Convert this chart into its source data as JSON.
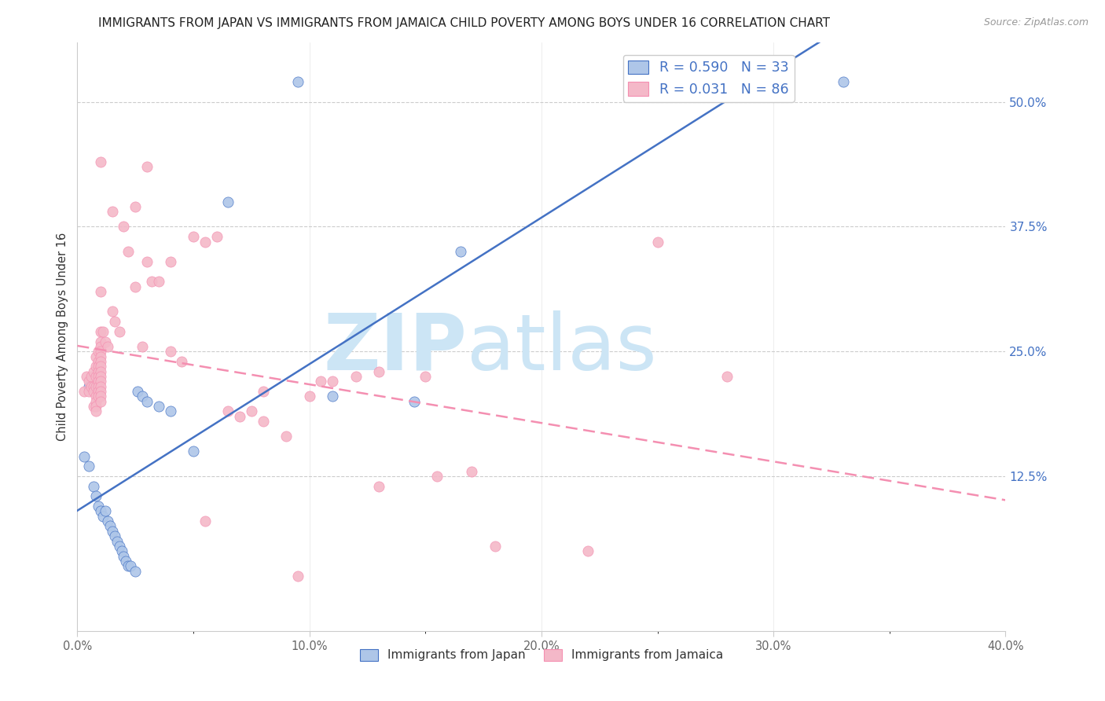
{
  "title": "IMMIGRANTS FROM JAPAN VS IMMIGRANTS FROM JAMAICA CHILD POVERTY AMONG BOYS UNDER 16 CORRELATION CHART",
  "source": "Source: ZipAtlas.com",
  "ylabel": "Child Poverty Among Boys Under 16",
  "x_tick_labels": [
    "0.0%",
    "",
    "10.0%",
    "",
    "20.0%",
    "",
    "30.0%",
    "",
    "40.0%"
  ],
  "x_tick_values": [
    0,
    5,
    10,
    15,
    20,
    25,
    30,
    35,
    40
  ],
  "x_tick_display": [
    "0.0%",
    "10.0%",
    "20.0%",
    "30.0%",
    "40.0%"
  ],
  "x_tick_display_vals": [
    0,
    10,
    20,
    30,
    40
  ],
  "y_tick_labels_right": [
    "50.0%",
    "37.5%",
    "25.0%",
    "12.5%"
  ],
  "y_tick_values_right": [
    50,
    37.5,
    25,
    12.5
  ],
  "xlim": [
    0,
    40
  ],
  "ylim": [
    -3,
    56
  ],
  "legend_entries": [
    {
      "label": "R = 0.590   N = 33",
      "color": "#aec6e8"
    },
    {
      "label": "R = 0.031   N = 86",
      "color": "#f4b8c8"
    }
  ],
  "legend_labels_bottom": [
    "Immigrants from Japan",
    "Immigrants from Jamaica"
  ],
  "japan_color": "#aec6e8",
  "jamaica_color": "#f4b8c8",
  "japan_line_color": "#4472c4",
  "jamaica_line_color": "#f48fb1",
  "watermark_zip": "ZIP",
  "watermark_atlas": "atlas",
  "watermark_color": "#cce5f5",
  "japan_points": [
    [
      0.3,
      14.5
    ],
    [
      0.5,
      13.5
    ],
    [
      0.5,
      21.5
    ],
    [
      0.7,
      11.5
    ],
    [
      0.8,
      10.5
    ],
    [
      0.9,
      9.5
    ],
    [
      1.0,
      9.0
    ],
    [
      1.1,
      8.5
    ],
    [
      1.2,
      9.0
    ],
    [
      1.3,
      8.0
    ],
    [
      1.4,
      7.5
    ],
    [
      1.5,
      7.0
    ],
    [
      1.6,
      6.5
    ],
    [
      1.7,
      6.0
    ],
    [
      1.8,
      5.5
    ],
    [
      1.9,
      5.0
    ],
    [
      2.0,
      4.5
    ],
    [
      2.1,
      4.0
    ],
    [
      2.2,
      3.5
    ],
    [
      2.3,
      3.5
    ],
    [
      2.5,
      3.0
    ],
    [
      2.6,
      21.0
    ],
    [
      2.8,
      20.5
    ],
    [
      3.0,
      20.0
    ],
    [
      3.5,
      19.5
    ],
    [
      4.0,
      19.0
    ],
    [
      5.0,
      15.0
    ],
    [
      6.5,
      40.0
    ],
    [
      9.5,
      52.0
    ],
    [
      11.0,
      20.5
    ],
    [
      14.5,
      20.0
    ],
    [
      16.5,
      35.0
    ],
    [
      33.0,
      52.0
    ]
  ],
  "jamaica_points": [
    [
      0.3,
      21.0
    ],
    [
      0.4,
      22.5
    ],
    [
      0.5,
      21.0
    ],
    [
      0.5,
      22.0
    ],
    [
      0.6,
      22.5
    ],
    [
      0.6,
      21.5
    ],
    [
      0.7,
      23.0
    ],
    [
      0.7,
      21.5
    ],
    [
      0.7,
      21.0
    ],
    [
      0.7,
      19.5
    ],
    [
      0.8,
      24.5
    ],
    [
      0.8,
      23.5
    ],
    [
      0.8,
      22.5
    ],
    [
      0.8,
      21.5
    ],
    [
      0.8,
      20.5
    ],
    [
      0.8,
      20.0
    ],
    [
      0.8,
      19.5
    ],
    [
      0.8,
      19.0
    ],
    [
      0.9,
      25.0
    ],
    [
      0.9,
      24.0
    ],
    [
      0.9,
      23.5
    ],
    [
      0.9,
      23.0
    ],
    [
      0.9,
      22.5
    ],
    [
      0.9,
      22.0
    ],
    [
      0.9,
      21.5
    ],
    [
      0.9,
      21.0
    ],
    [
      0.9,
      20.5
    ],
    [
      1.0,
      31.0
    ],
    [
      1.0,
      27.0
    ],
    [
      1.0,
      26.0
    ],
    [
      1.0,
      25.5
    ],
    [
      1.0,
      25.0
    ],
    [
      1.0,
      24.5
    ],
    [
      1.0,
      24.0
    ],
    [
      1.0,
      23.5
    ],
    [
      1.0,
      23.0
    ],
    [
      1.0,
      22.5
    ],
    [
      1.0,
      22.0
    ],
    [
      1.0,
      21.5
    ],
    [
      1.0,
      21.0
    ],
    [
      1.0,
      20.5
    ],
    [
      1.0,
      20.0
    ],
    [
      1.1,
      27.0
    ],
    [
      1.2,
      26.0
    ],
    [
      1.3,
      25.5
    ],
    [
      1.5,
      29.0
    ],
    [
      1.6,
      28.0
    ],
    [
      1.8,
      27.0
    ],
    [
      2.0,
      37.5
    ],
    [
      2.2,
      35.0
    ],
    [
      2.5,
      31.5
    ],
    [
      2.8,
      25.5
    ],
    [
      3.0,
      34.0
    ],
    [
      3.0,
      43.5
    ],
    [
      3.2,
      32.0
    ],
    [
      3.5,
      32.0
    ],
    [
      4.0,
      34.0
    ],
    [
      4.0,
      25.0
    ],
    [
      4.5,
      24.0
    ],
    [
      5.0,
      36.5
    ],
    [
      5.5,
      36.0
    ],
    [
      6.0,
      36.5
    ],
    [
      6.5,
      19.0
    ],
    [
      7.0,
      18.5
    ],
    [
      7.5,
      19.0
    ],
    [
      8.0,
      21.0
    ],
    [
      8.0,
      18.0
    ],
    [
      9.0,
      16.5
    ],
    [
      9.5,
      2.5
    ],
    [
      10.0,
      20.5
    ],
    [
      10.5,
      22.0
    ],
    [
      11.0,
      22.0
    ],
    [
      12.0,
      22.5
    ],
    [
      13.0,
      23.0
    ],
    [
      15.0,
      22.5
    ],
    [
      15.5,
      12.5
    ],
    [
      17.0,
      13.0
    ],
    [
      18.0,
      5.5
    ],
    [
      22.0,
      5.0
    ],
    [
      25.0,
      36.0
    ],
    [
      28.0,
      22.5
    ],
    [
      1.5,
      39.0
    ],
    [
      1.0,
      44.0
    ],
    [
      2.5,
      39.5
    ],
    [
      5.5,
      8.0
    ],
    [
      13.0,
      11.5
    ]
  ]
}
